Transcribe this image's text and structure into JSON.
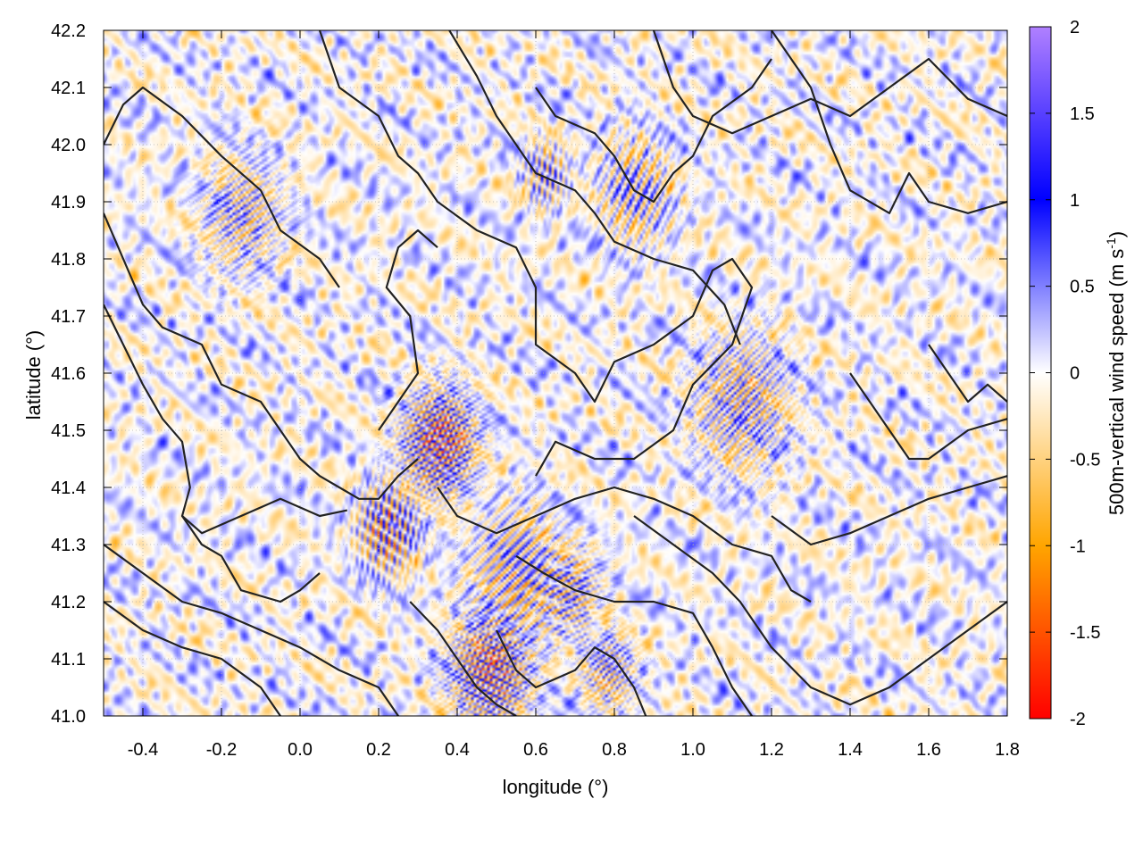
{
  "chart_data": {
    "type": "heatmap",
    "xlabel": "longitude (°)",
    "ylabel": "latitude (°)",
    "xlim": [
      -0.5,
      1.8
    ],
    "ylim": [
      41.0,
      42.2
    ],
    "x_ticks": [
      -0.4,
      -0.2,
      0.0,
      0.2,
      0.4,
      0.6,
      0.8,
      1.0,
      1.2,
      1.4,
      1.6,
      1.8
    ],
    "x_tick_labels": [
      "-0.4",
      "-0.2",
      "0.0",
      "0.2",
      "0.4",
      "0.6",
      "0.8",
      "1.0",
      "1.2",
      "1.4",
      "1.6",
      "1.8"
    ],
    "y_ticks": [
      41.0,
      41.1,
      41.2,
      41.3,
      41.4,
      41.5,
      41.6,
      41.7,
      41.8,
      41.9,
      42.0,
      42.1,
      42.2
    ],
    "y_tick_labels": [
      "41.0",
      "41.1",
      "41.2",
      "41.3",
      "41.4",
      "41.5",
      "41.6",
      "41.7",
      "41.8",
      "41.9",
      "42.0",
      "42.1",
      "42.2"
    ],
    "grid": true,
    "colorbar": {
      "label_main": "500m-vertical wind speed (m s",
      "label_sup": "-1",
      "label_close": ")",
      "range": [
        -2,
        2
      ],
      "ticks": [
        2,
        1.5,
        1,
        0.5,
        0,
        -0.5,
        -1,
        -1.5,
        -2
      ],
      "tick_labels": [
        "2",
        "1.5",
        "1",
        "0.5",
        "0",
        "-0.5",
        "-1",
        "-1.5",
        "-2"
      ],
      "palette": [
        {
          "v": -2.0,
          "color": "#ff0000"
        },
        {
          "v": -1.0,
          "color": "#ffa500"
        },
        {
          "v": 0.0,
          "color": "#ffffff"
        },
        {
          "v": 1.0,
          "color": "#0000ff"
        },
        {
          "v": 2.0,
          "color": "#b080ff"
        }
      ]
    },
    "contour_color": "#222222",
    "contours": [
      [
        [
          -0.5,
          42.0
        ],
        [
          -0.45,
          42.07
        ],
        [
          -0.4,
          42.1
        ],
        [
          -0.3,
          42.05
        ],
        [
          -0.2,
          41.98
        ],
        [
          -0.1,
          41.92
        ],
        [
          -0.05,
          41.85
        ],
        [
          0.05,
          41.8
        ],
        [
          0.1,
          41.75
        ]
      ],
      [
        [
          0.05,
          42.2
        ],
        [
          0.1,
          42.1
        ],
        [
          0.2,
          42.05
        ],
        [
          0.25,
          41.98
        ],
        [
          0.3,
          41.95
        ],
        [
          0.35,
          41.9
        ],
        [
          0.45,
          41.85
        ],
        [
          0.55,
          41.82
        ],
        [
          0.6,
          41.75
        ],
        [
          0.6,
          41.65
        ],
        [
          0.7,
          41.6
        ],
        [
          0.75,
          41.55
        ],
        [
          0.8,
          41.62
        ],
        [
          0.9,
          41.65
        ],
        [
          1.0,
          41.7
        ],
        [
          1.05,
          41.78
        ],
        [
          1.1,
          41.8
        ],
        [
          1.15,
          41.75
        ],
        [
          1.1,
          41.65
        ],
        [
          1.0,
          41.58
        ],
        [
          0.95,
          41.5
        ],
        [
          0.85,
          41.45
        ],
        [
          0.75,
          41.45
        ],
        [
          0.65,
          41.48
        ],
        [
          0.6,
          41.42
        ]
      ],
      [
        [
          0.38,
          42.2
        ],
        [
          0.45,
          42.12
        ],
        [
          0.5,
          42.05
        ],
        [
          0.55,
          42.0
        ],
        [
          0.6,
          41.95
        ],
        [
          0.7,
          41.92
        ],
        [
          0.75,
          41.88
        ],
        [
          0.8,
          41.83
        ],
        [
          0.9,
          41.8
        ],
        [
          1.0,
          41.78
        ],
        [
          1.08,
          41.72
        ],
        [
          1.12,
          41.65
        ]
      ],
      [
        [
          0.6,
          42.1
        ],
        [
          0.65,
          42.05
        ],
        [
          0.75,
          42.02
        ],
        [
          0.8,
          41.98
        ],
        [
          0.85,
          41.92
        ],
        [
          0.9,
          41.9
        ],
        [
          0.95,
          41.95
        ],
        [
          1.0,
          41.98
        ],
        [
          1.05,
          42.05
        ],
        [
          1.15,
          42.1
        ],
        [
          1.2,
          42.15
        ]
      ],
      [
        [
          0.9,
          42.2
        ],
        [
          0.95,
          42.1
        ],
        [
          1.0,
          42.05
        ],
        [
          1.1,
          42.02
        ],
        [
          1.2,
          42.05
        ],
        [
          1.3,
          42.08
        ],
        [
          1.4,
          42.05
        ],
        [
          1.5,
          42.1
        ],
        [
          1.6,
          42.15
        ],
        [
          1.7,
          42.08
        ],
        [
          1.8,
          42.05
        ]
      ],
      [
        [
          1.2,
          42.2
        ],
        [
          1.25,
          42.15
        ],
        [
          1.3,
          42.1
        ],
        [
          1.35,
          42.0
        ],
        [
          1.4,
          41.92
        ],
        [
          1.5,
          41.88
        ],
        [
          1.55,
          41.95
        ],
        [
          1.6,
          41.9
        ],
        [
          1.7,
          41.88
        ],
        [
          1.8,
          41.9
        ]
      ],
      [
        [
          -0.5,
          41.88
        ],
        [
          -0.45,
          41.8
        ],
        [
          -0.4,
          41.72
        ],
        [
          -0.35,
          41.68
        ],
        [
          -0.25,
          41.65
        ],
        [
          -0.2,
          41.58
        ],
        [
          -0.1,
          41.55
        ],
        [
          -0.05,
          41.5
        ],
        [
          0.0,
          41.45
        ],
        [
          0.05,
          41.42
        ],
        [
          0.1,
          41.4
        ],
        [
          0.15,
          41.38
        ],
        [
          0.2,
          41.38
        ],
        [
          0.25,
          41.42
        ],
        [
          0.3,
          41.45
        ]
      ],
      [
        [
          -0.5,
          41.72
        ],
        [
          -0.45,
          41.65
        ],
        [
          -0.4,
          41.58
        ],
        [
          -0.35,
          41.52
        ],
        [
          -0.3,
          41.48
        ],
        [
          -0.28,
          41.4
        ],
        [
          -0.3,
          41.35
        ],
        [
          -0.25,
          41.32
        ],
        [
          -0.15,
          41.35
        ],
        [
          -0.05,
          41.38
        ],
        [
          0.05,
          41.35
        ],
        [
          0.12,
          41.36
        ]
      ],
      [
        [
          -0.5,
          41.3
        ],
        [
          -0.4,
          41.25
        ],
        [
          -0.3,
          41.2
        ],
        [
          -0.2,
          41.18
        ],
        [
          -0.1,
          41.15
        ],
        [
          0.0,
          41.12
        ],
        [
          0.1,
          41.08
        ],
        [
          0.2,
          41.05
        ],
        [
          0.25,
          41.0
        ]
      ],
      [
        [
          -0.5,
          41.2
        ],
        [
          -0.4,
          41.15
        ],
        [
          -0.3,
          41.12
        ],
        [
          -0.2,
          41.1
        ],
        [
          -0.1,
          41.05
        ],
        [
          -0.05,
          41.0
        ]
      ],
      [
        [
          0.35,
          41.4
        ],
        [
          0.4,
          41.35
        ],
        [
          0.5,
          41.32
        ],
        [
          0.6,
          41.35
        ],
        [
          0.7,
          41.38
        ],
        [
          0.8,
          41.4
        ],
        [
          0.9,
          41.38
        ],
        [
          1.0,
          41.35
        ],
        [
          1.1,
          41.3
        ],
        [
          1.2,
          41.28
        ],
        [
          1.25,
          41.22
        ],
        [
          1.3,
          41.2
        ]
      ],
      [
        [
          0.55,
          41.28
        ],
        [
          0.62,
          41.25
        ],
        [
          0.7,
          41.22
        ],
        [
          0.8,
          41.2
        ],
        [
          0.9,
          41.2
        ],
        [
          1.0,
          41.18
        ],
        [
          1.05,
          41.12
        ],
        [
          1.1,
          41.05
        ],
        [
          1.15,
          41.0
        ]
      ],
      [
        [
          0.85,
          41.35
        ],
        [
          0.95,
          41.3
        ],
        [
          1.05,
          41.25
        ],
        [
          1.12,
          41.2
        ],
        [
          1.2,
          41.12
        ],
        [
          1.3,
          41.05
        ],
        [
          1.4,
          41.02
        ],
        [
          1.5,
          41.05
        ],
        [
          1.6,
          41.1
        ],
        [
          1.7,
          41.15
        ],
        [
          1.8,
          41.2
        ]
      ],
      [
        [
          1.2,
          41.35
        ],
        [
          1.3,
          41.3
        ],
        [
          1.4,
          41.32
        ],
        [
          1.5,
          41.35
        ],
        [
          1.6,
          41.38
        ],
        [
          1.7,
          41.4
        ],
        [
          1.8,
          41.42
        ]
      ],
      [
        [
          0.5,
          41.15
        ],
        [
          0.55,
          41.08
        ],
        [
          0.6,
          41.05
        ],
        [
          0.7,
          41.08
        ],
        [
          0.75,
          41.12
        ],
        [
          0.8,
          41.1
        ],
        [
          0.85,
          41.05
        ],
        [
          0.88,
          41.0
        ]
      ],
      [
        [
          0.28,
          41.2
        ],
        [
          0.35,
          41.15
        ],
        [
          0.4,
          41.1
        ],
        [
          0.45,
          41.05
        ],
        [
          0.5,
          41.02
        ],
        [
          0.55,
          41.0
        ]
      ],
      [
        [
          0.2,
          41.5
        ],
        [
          0.25,
          41.55
        ],
        [
          0.3,
          41.6
        ],
        [
          0.28,
          41.7
        ],
        [
          0.22,
          41.75
        ],
        [
          0.25,
          41.82
        ],
        [
          0.3,
          41.85
        ],
        [
          0.35,
          41.82
        ]
      ],
      [
        [
          1.6,
          41.65
        ],
        [
          1.65,
          41.6
        ],
        [
          1.7,
          41.55
        ],
        [
          1.75,
          41.58
        ],
        [
          1.8,
          41.55
        ]
      ],
      [
        [
          1.4,
          41.6
        ],
        [
          1.45,
          41.55
        ],
        [
          1.5,
          41.5
        ],
        [
          1.55,
          41.45
        ],
        [
          1.6,
          41.45
        ],
        [
          1.7,
          41.5
        ],
        [
          1.8,
          41.52
        ]
      ],
      [
        [
          -0.3,
          41.35
        ],
        [
          -0.25,
          41.3
        ],
        [
          -0.2,
          41.28
        ],
        [
          -0.15,
          41.22
        ],
        [
          -0.05,
          41.2
        ],
        [
          0.0,
          41.22
        ],
        [
          0.05,
          41.25
        ]
      ]
    ]
  }
}
